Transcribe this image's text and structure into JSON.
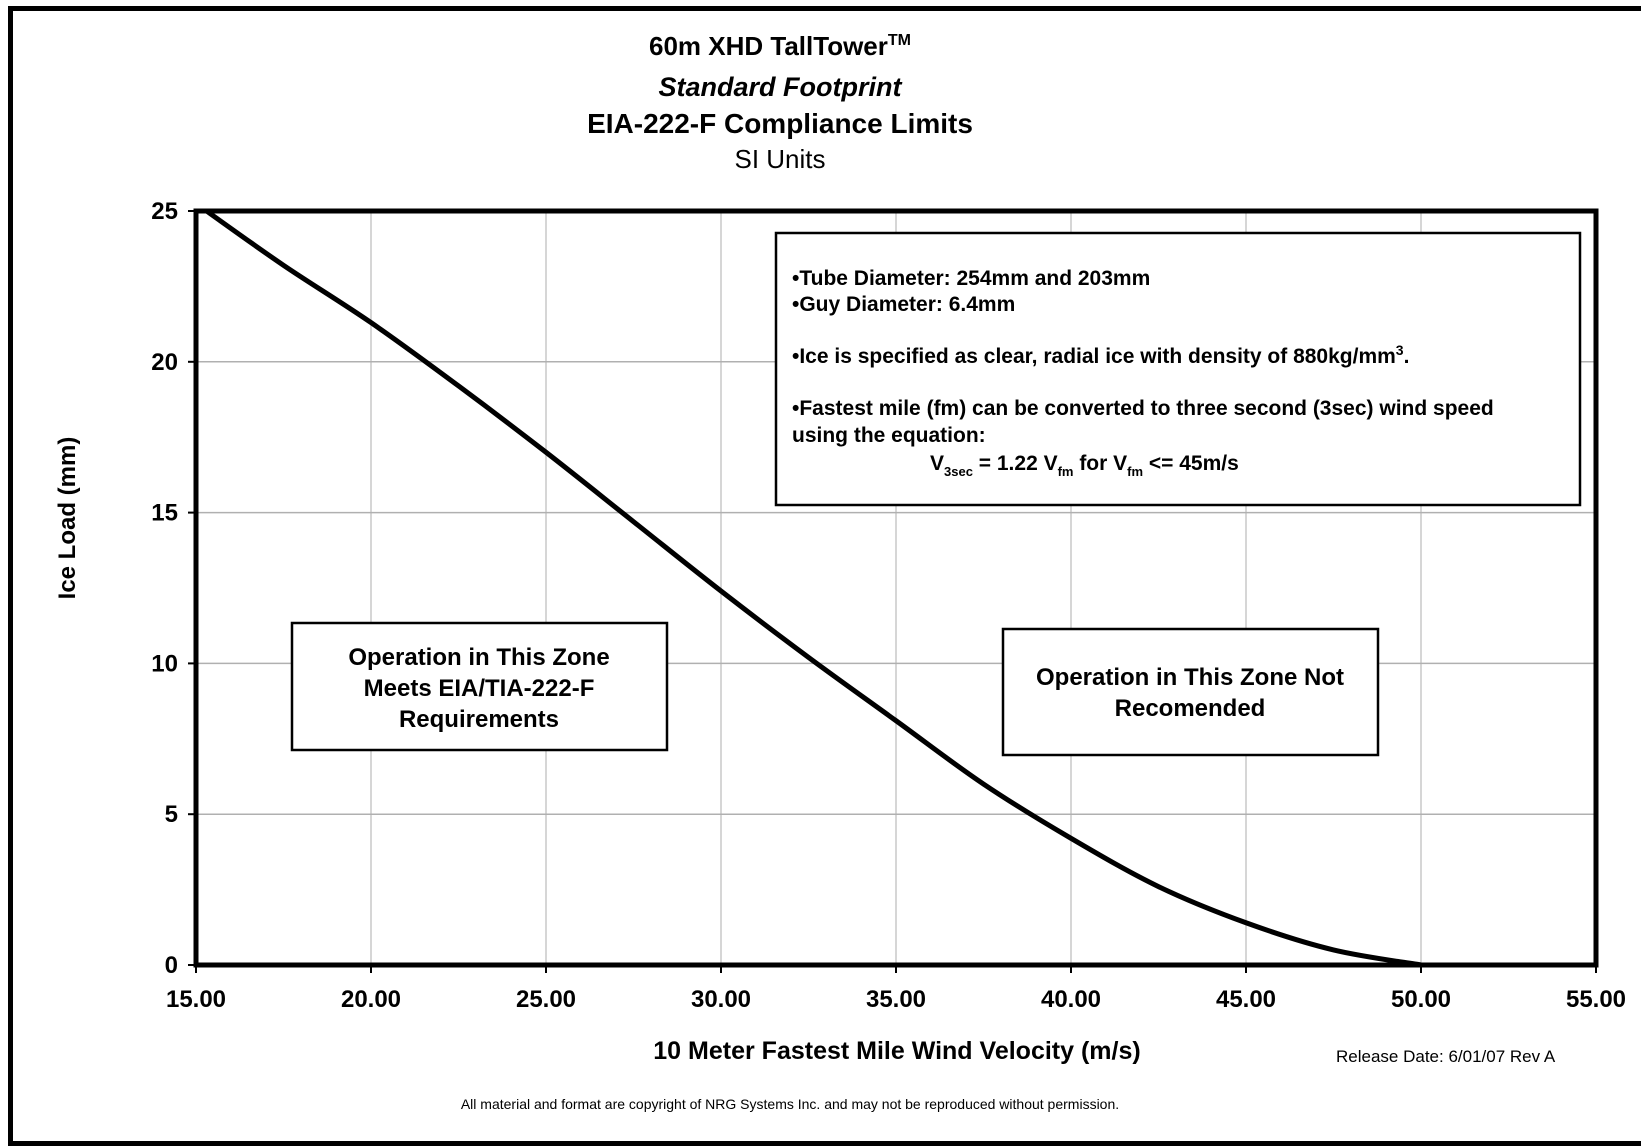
{
  "chart_data": {
    "type": "line",
    "title": "60m XHD TallTower",
    "title_mark": "TM",
    "subtitle_italic": "Standard Footprint",
    "subtitle": "EIA-222-F Compliance Limits",
    "units_line": "SI Units",
    "xlabel": "10 Meter Fastest Mile Wind Velocity (m/s)",
    "ylabel": "Ice Load (mm)",
    "xlim": [
      15,
      55
    ],
    "ylim": [
      0,
      25
    ],
    "xticks": [
      "15.00",
      "20.00",
      "25.00",
      "30.00",
      "35.00",
      "40.00",
      "45.00",
      "50.00",
      "55.00"
    ],
    "yticks": [
      "0",
      "5",
      "10",
      "15",
      "20",
      "25"
    ],
    "grid": true,
    "series": [
      {
        "name": "",
        "color": "#000000",
        "x": [
          15.3,
          17.5,
          20.0,
          22.5,
          25.0,
          27.5,
          30.0,
          32.5,
          35.0,
          37.5,
          40.0,
          42.5,
          45.0,
          47.5,
          50.0
        ],
        "y": [
          25.0,
          23.2,
          21.3,
          19.2,
          17.0,
          14.7,
          12.4,
          10.2,
          8.1,
          6.0,
          4.2,
          2.6,
          1.4,
          0.5,
          0.0
        ]
      }
    ],
    "annotations": {
      "notes": {
        "tube": "•Tube Diameter: 254mm and 203mm",
        "guy": "•Guy Diameter:  6.4mm",
        "ice": "•Ice is specified as clear, radial ice with density of 880kg/mm",
        "ice_sup": "3",
        "ice_end": ".",
        "fastest_1": "•Fastest mile (fm) can be converted to three second (3sec) wind speed",
        "fastest_2": "using the equation:",
        "eq_v": "V",
        "eq_sub1": "3sec",
        "eq_mid": " = 1.22 V",
        "eq_sub2": "fm",
        "eq_for": " for V",
        "eq_sub3": "fm",
        "eq_end": " <= 45m/s"
      },
      "zone_meets": [
        "Operation in This Zone",
        "Meets EIA/TIA-222-F",
        "Requirements"
      ],
      "zone_not": [
        "Operation in This Zone Not",
        "Recomended"
      ]
    },
    "release": "Release Date: 6/01/07 Rev A",
    "copyright": "All material and format are copyright of NRG Systems Inc. and may not be reproduced without permission."
  }
}
